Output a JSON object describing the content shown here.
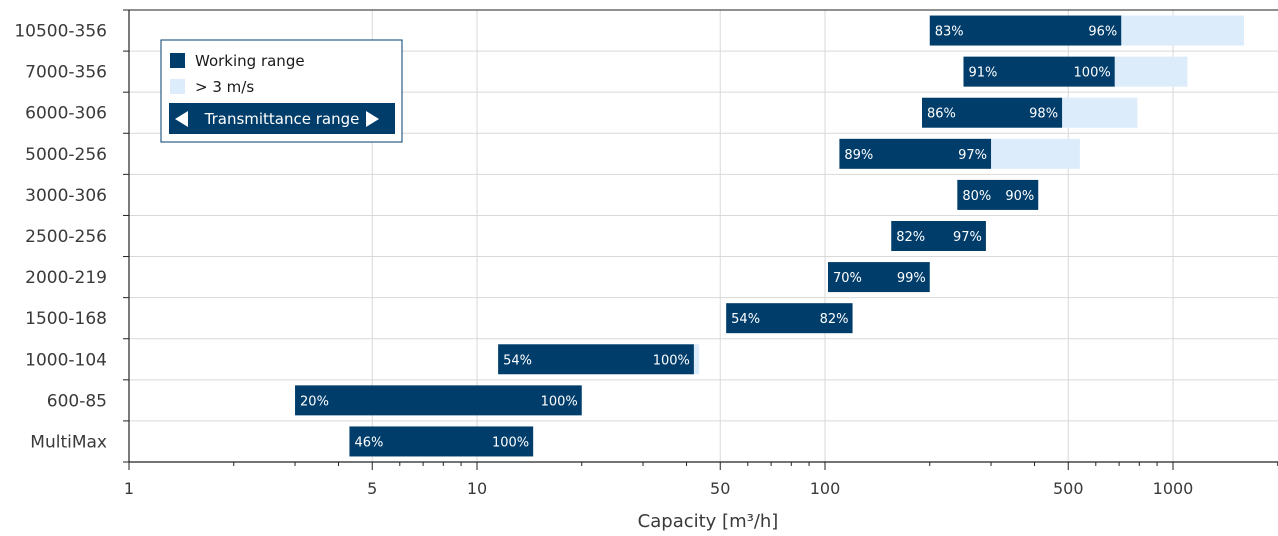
{
  "colors": {
    "working": "#003d6b",
    "extended": "#dcecfb",
    "grid": "#d9d9d9",
    "axis": "#222222"
  },
  "chart_data": {
    "type": "bar",
    "orientation": "horizontal",
    "x_scale": "log",
    "xlim": [
      1,
      2000
    ],
    "xlabel": "Capacity [m³/h]",
    "x_ticks": [
      1,
      5,
      10,
      50,
      100,
      500,
      1000
    ],
    "x_tick_labels": [
      "1",
      "5",
      "10",
      "50",
      "100",
      "500",
      "1000"
    ],
    "categories": [
      "10500-356",
      "7000-356",
      "6000-306",
      "5000-256",
      "3000-306",
      "2500-256",
      "2000-219",
      "1500-168",
      "1000-104",
      "600-85",
      "MultiMax"
    ],
    "series": [
      {
        "name": "Working range",
        "start": [
          200,
          250,
          190,
          110,
          240,
          155,
          102,
          52,
          11.5,
          3,
          4.3
        ],
        "end": [
          710,
          680,
          480,
          300,
          410,
          290,
          200,
          120,
          42,
          20,
          14.5
        ]
      },
      {
        "name": "> 3 m/s",
        "start": [
          710,
          680,
          480,
          300,
          null,
          null,
          null,
          null,
          42,
          null,
          null
        ],
        "end": [
          1600,
          1100,
          790,
          540,
          null,
          null,
          null,
          null,
          43.5,
          null,
          null
        ]
      }
    ],
    "transmittance_start_labels": [
      "83%",
      "91%",
      "86%",
      "89%",
      "80%",
      "82%",
      "70%",
      "54%",
      "54%",
      "20%",
      "46%"
    ],
    "transmittance_end_labels": [
      "96%",
      "100%",
      "98%",
      "97%",
      "90%",
      "97%",
      "99%",
      "82%",
      "100%",
      "100%",
      "100%"
    ],
    "legend": {
      "position": "top-left",
      "items": [
        "Working range",
        "> 3 m/s"
      ],
      "range_label": "Transmittance range"
    },
    "grid": true
  }
}
